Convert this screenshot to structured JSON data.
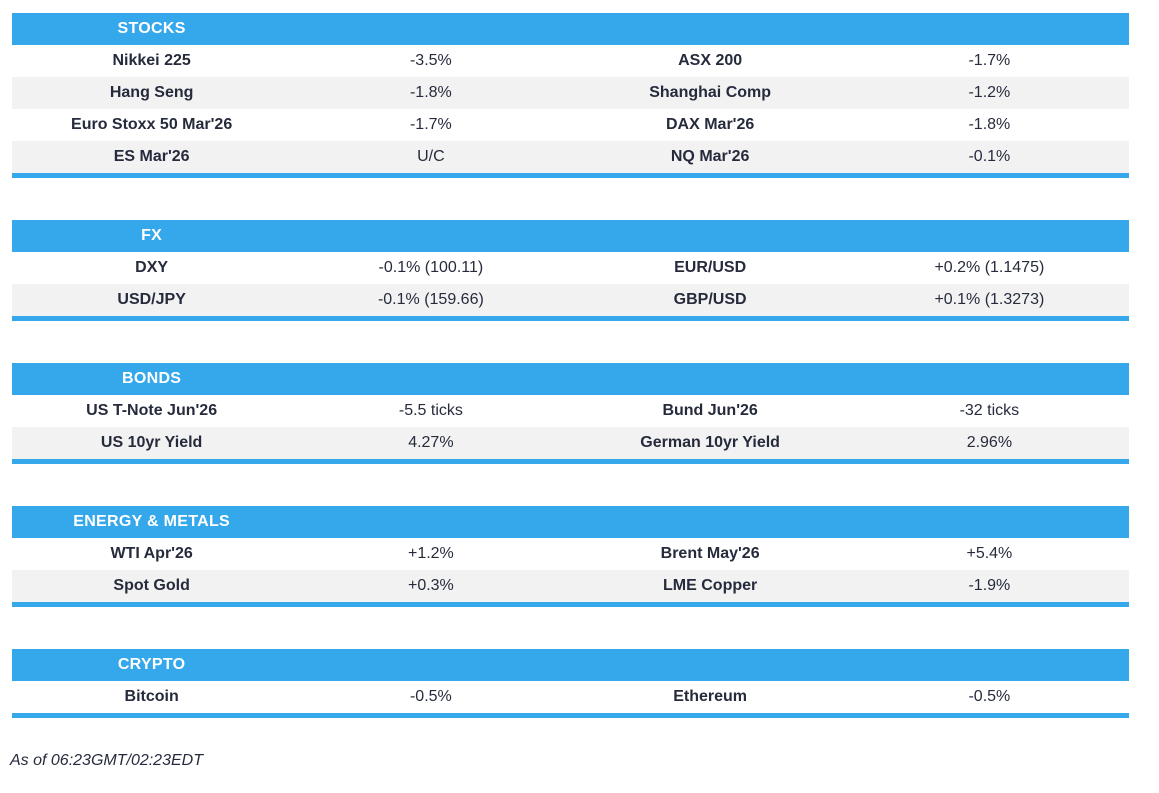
{
  "colors": {
    "accent_blue": "#35a8ec",
    "row_alt_grey": "#f2f2f3",
    "text_dark": "#262b3c",
    "header_text": "#ffffff"
  },
  "sections": [
    {
      "title": "STOCKS",
      "rows": [
        {
          "l1": "Nikkei 225",
          "v1": "-3.5%",
          "l2": "ASX 200",
          "v2": "-1.7%"
        },
        {
          "l1": "Hang Seng",
          "v1": "-1.8%",
          "l2": "Shanghai Comp",
          "v2": "-1.2%"
        },
        {
          "l1": "Euro Stoxx 50 Mar'26",
          "v1": "-1.7%",
          "l2": "DAX Mar'26",
          "v2": "-1.8%"
        },
        {
          "l1": "ES Mar'26",
          "v1": "U/C",
          "l2": "NQ Mar'26",
          "v2": "-0.1%"
        }
      ]
    },
    {
      "title": "FX",
      "rows": [
        {
          "l1": "DXY",
          "v1": "-0.1% (100.11)",
          "l2": "EUR/USD",
          "v2": "+0.2% (1.1475)"
        },
        {
          "l1": "USD/JPY",
          "v1": "-0.1% (159.66)",
          "l2": "GBP/USD",
          "v2": "+0.1% (1.3273)"
        }
      ]
    },
    {
      "title": "BONDS",
      "rows": [
        {
          "l1": "US T-Note Jun'26",
          "v1": "-5.5 ticks",
          "l2": "Bund Jun'26",
          "v2": "-32 ticks"
        },
        {
          "l1": "US 10yr Yield",
          "v1": "4.27%",
          "l2": "German 10yr Yield",
          "v2": "2.96%"
        }
      ]
    },
    {
      "title": "ENERGY & METALS",
      "rows": [
        {
          "l1": "WTI Apr'26",
          "v1": "+1.2%",
          "l2": "Brent May'26",
          "v2": "+5.4%"
        },
        {
          "l1": "Spot Gold",
          "v1": "+0.3%",
          "l2": "LME Copper",
          "v2": "-1.9%"
        }
      ]
    },
    {
      "title": "CRYPTO",
      "rows": [
        {
          "l1": "Bitcoin",
          "v1": "-0.5%",
          "l2": "Ethereum",
          "v2": "-0.5%"
        }
      ]
    }
  ],
  "footer": {
    "as_of": "As of 06:23GMT/02:23EDT"
  }
}
